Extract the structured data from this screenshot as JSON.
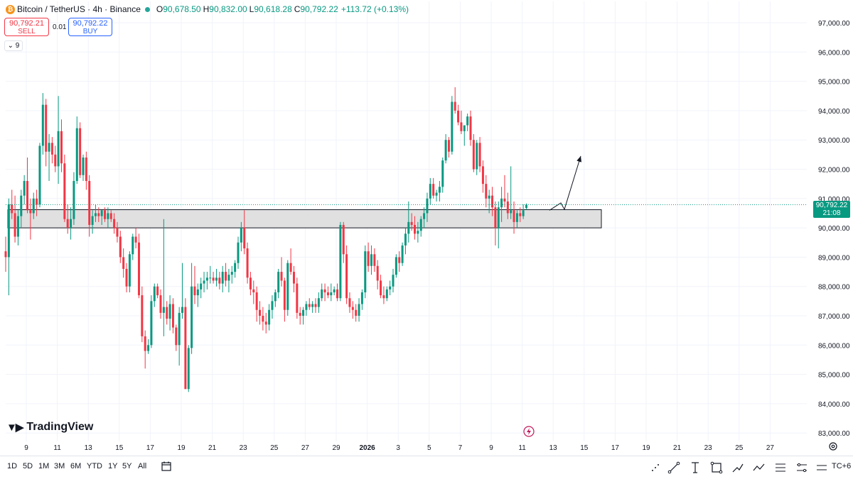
{
  "symbol": {
    "name": "Bitcoin / TetherUS · 4h · Binance",
    "coin_glyph": "₿",
    "ohlc": {
      "o_label": "O",
      "o": "90,678.50",
      "h_label": "H",
      "h": "90,832.00",
      "l_label": "L",
      "l": "90,618.28",
      "c_label": "C",
      "c": "90,792.22",
      "change": "+113.72 (+0.13%)"
    }
  },
  "trade": {
    "sell_price": "90,792.21",
    "sell_label": "SELL",
    "spread": "0.01",
    "buy_price": "90,792.22",
    "buy_label": "BUY"
  },
  "indicators_toggle": "⌄ 9",
  "brand": {
    "mark": "▼▶",
    "name": "TradingView"
  },
  "last_price": {
    "price": "90,792.22",
    "countdown": "21:08"
  },
  "time_ranges": [
    "1D",
    "5D",
    "1M",
    "3M",
    "6M",
    "YTD",
    "1Y",
    "5Y",
    "All"
  ],
  "timezone": "TC+6",
  "drawing_tools": [
    "cursor-tool-icon",
    "trendline-tool-icon",
    "text-tool-icon",
    "rectangle-tool-icon",
    "brush-tool-icon",
    "path-tool-icon",
    "fib-tool-icon",
    "position-tool-icon",
    "measure-tool-icon"
  ],
  "colors": {
    "up": "#089981",
    "down": "#f23645",
    "zone_fill": "#e0e0e0",
    "accent": "#2962ff"
  },
  "chart_data": {
    "type": "candlestick",
    "title": "Bitcoin / TetherUS · 4h · Binance",
    "y_ticks": [
      97000,
      96000,
      95000,
      94000,
      93000,
      92000,
      91000,
      90000,
      89000,
      88000,
      87000,
      86000,
      85000,
      84000,
      83000
    ],
    "ylim": [
      82900,
      97600
    ],
    "x_tick_labels": [
      "9",
      "11",
      "13",
      "15",
      "17",
      "19",
      "21",
      "23",
      "25",
      "27",
      "29",
      "2026",
      "3",
      "5",
      "7",
      "9",
      "11",
      "13",
      "15",
      "17",
      "19",
      "21",
      "23",
      "25",
      "27"
    ],
    "last_price": 90792.22,
    "support_zone": {
      "low": 90000,
      "high": 90620
    },
    "projection": [
      90600,
      90850,
      90630,
      92450
    ],
    "candles": [
      [
        89200,
        89700,
        88500,
        89000
      ],
      [
        89000,
        91000,
        87700,
        90800
      ],
      [
        90800,
        91300,
        90300,
        90500
      ],
      [
        90500,
        91100,
        89500,
        89700
      ],
      [
        89700,
        90600,
        89400,
        90400
      ],
      [
        90400,
        91300,
        90000,
        91100
      ],
      [
        91100,
        91800,
        90800,
        91600
      ],
      [
        91600,
        92400,
        90500,
        90600
      ],
      [
        90600,
        91000,
        89600,
        90500
      ],
      [
        90500,
        91200,
        90300,
        91000
      ],
      [
        91000,
        91300,
        90400,
        90800
      ],
      [
        90800,
        92900,
        90700,
        92800
      ],
      [
        92800,
        94600,
        92500,
        94200
      ],
      [
        94200,
        94400,
        92100,
        92600
      ],
      [
        92600,
        93200,
        91600,
        92900
      ],
      [
        92900,
        93100,
        92200,
        92500
      ],
      [
        92500,
        92800,
        91900,
        92100
      ],
      [
        92100,
        94500,
        91500,
        93300
      ],
      [
        93300,
        93700,
        91900,
        92200
      ],
      [
        92200,
        92500,
        90200,
        90300
      ],
      [
        90300,
        90800,
        89800,
        90000
      ],
      [
        90000,
        90700,
        89600,
        90300
      ],
      [
        90300,
        91900,
        90100,
        91600
      ],
      [
        91600,
        93800,
        91500,
        93400
      ],
      [
        93400,
        93600,
        91700,
        91800
      ],
      [
        91800,
        92500,
        91600,
        92400
      ],
      [
        92400,
        92600,
        91300,
        91600
      ],
      [
        91600,
        91800,
        89700,
        90100
      ],
      [
        90100,
        90600,
        89800,
        90400
      ],
      [
        90400,
        90800,
        90200,
        90500
      ],
      [
        90500,
        90700,
        90200,
        90400
      ],
      [
        90400,
        90600,
        90100,
        90600
      ],
      [
        90600,
        90700,
        90200,
        90300
      ],
      [
        90300,
        90700,
        90000,
        90500
      ],
      [
        90500,
        90600,
        90200,
        90300
      ],
      [
        90300,
        90500,
        89800,
        90000
      ],
      [
        90000,
        90200,
        89500,
        89700
      ],
      [
        89700,
        89900,
        88800,
        89000
      ],
      [
        89000,
        89300,
        88300,
        88600
      ],
      [
        88600,
        88800,
        87800,
        88000
      ],
      [
        88000,
        89200,
        87800,
        89100
      ],
      [
        89100,
        89800,
        88900,
        89700
      ],
      [
        89700,
        90000,
        89300,
        89500
      ],
      [
        89500,
        89800,
        87600,
        87700
      ],
      [
        87700,
        88000,
        86100,
        86300
      ],
      [
        86300,
        86500,
        85200,
        85800
      ],
      [
        85800,
        86200,
        85700,
        86000
      ],
      [
        86000,
        87700,
        85900,
        87500
      ],
      [
        87500,
        88100,
        87300,
        88000
      ],
      [
        88000,
        88100,
        87600,
        87700
      ],
      [
        87700,
        87900,
        86900,
        87100
      ],
      [
        87100,
        90300,
        86300,
        87300
      ],
      [
        87300,
        87500,
        86700,
        86900
      ],
      [
        86900,
        87700,
        86500,
        87400
      ],
      [
        87400,
        87600,
        86400,
        86600
      ],
      [
        86600,
        86700,
        85800,
        86000
      ],
      [
        86000,
        87300,
        85300,
        87100
      ],
      [
        87100,
        88800,
        86900,
        87300
      ],
      [
        87300,
        87600,
        84500,
        84500
      ],
      [
        84500,
        86000,
        84400,
        85900
      ],
      [
        85900,
        88800,
        85700,
        88000
      ],
      [
        88000,
        88700,
        87400,
        87700
      ],
      [
        87700,
        88100,
        87300,
        87900
      ],
      [
        87900,
        88300,
        87600,
        88100
      ],
      [
        88100,
        88500,
        87800,
        88200
      ],
      [
        88200,
        88500,
        87900,
        88300
      ],
      [
        88300,
        88700,
        88100,
        88300
      ],
      [
        88300,
        88500,
        88100,
        88200
      ],
      [
        88200,
        88600,
        88000,
        88300
      ],
      [
        88300,
        88500,
        87900,
        88100
      ],
      [
        88100,
        88700,
        87800,
        88500
      ],
      [
        88500,
        88800,
        88000,
        88200
      ],
      [
        88200,
        88600,
        87800,
        88400
      ],
      [
        88400,
        88700,
        88100,
        88500
      ],
      [
        88500,
        88900,
        88300,
        88800
      ],
      [
        88800,
        89700,
        88600,
        89500
      ],
      [
        89500,
        90200,
        89200,
        90000
      ],
      [
        90000,
        90600,
        89100,
        89300
      ],
      [
        89300,
        89500,
        88100,
        88300
      ],
      [
        88300,
        88500,
        87700,
        87900
      ],
      [
        87900,
        88200,
        87400,
        87800
      ],
      [
        87800,
        88000,
        86800,
        87200
      ],
      [
        87200,
        87500,
        86700,
        87000
      ],
      [
        87000,
        87300,
        86500,
        86800
      ],
      [
        86800,
        87100,
        86400,
        86700
      ],
      [
        86700,
        87400,
        86500,
        87200
      ],
      [
        87200,
        87700,
        86900,
        87500
      ],
      [
        87500,
        87900,
        87300,
        87800
      ],
      [
        87800,
        88600,
        87600,
        88500
      ],
      [
        88500,
        89000,
        88000,
        88200
      ],
      [
        88200,
        88300,
        86800,
        87200
      ],
      [
        87200,
        88900,
        87000,
        88800
      ],
      [
        88800,
        89300,
        88400,
        88500
      ],
      [
        88500,
        88700,
        87800,
        88100
      ],
      [
        88100,
        88300,
        86900,
        87100
      ],
      [
        87100,
        87300,
        86700,
        87000
      ],
      [
        87000,
        87300,
        86700,
        87200
      ],
      [
        87200,
        87500,
        87000,
        87400
      ],
      [
        87400,
        87600,
        87200,
        87300
      ],
      [
        87300,
        87500,
        87100,
        87400
      ],
      [
        87400,
        87600,
        87100,
        87300
      ],
      [
        87300,
        87800,
        87100,
        87600
      ],
      [
        87600,
        88100,
        87500,
        87900
      ],
      [
        87900,
        88100,
        87500,
        87800
      ],
      [
        87800,
        88000,
        87600,
        87700
      ],
      [
        87700,
        88100,
        87500,
        87800
      ],
      [
        87800,
        88000,
        87700,
        87900
      ],
      [
        87900,
        88100,
        87500,
        87600
      ],
      [
        87600,
        90200,
        87500,
        90100
      ],
      [
        90100,
        90200,
        88800,
        89100
      ],
      [
        89100,
        89400,
        87400,
        87600
      ],
      [
        87600,
        87800,
        87100,
        87300
      ],
      [
        87300,
        87500,
        86900,
        87200
      ],
      [
        87200,
        87400,
        86800,
        87000
      ],
      [
        87000,
        87600,
        86800,
        87400
      ],
      [
        87400,
        87900,
        87200,
        87800
      ],
      [
        87800,
        89400,
        87600,
        89200
      ],
      [
        89200,
        89500,
        88500,
        88700
      ],
      [
        88700,
        89400,
        88400,
        89100
      ],
      [
        89100,
        89300,
        88500,
        88700
      ],
      [
        88700,
        88900,
        87900,
        88200
      ],
      [
        88200,
        88400,
        87600,
        87700
      ],
      [
        87700,
        88000,
        87400,
        87600
      ],
      [
        87600,
        88000,
        87500,
        87900
      ],
      [
        87900,
        88200,
        87700,
        88000
      ],
      [
        88000,
        88600,
        87800,
        88400
      ],
      [
        88400,
        89100,
        88300,
        89000
      ],
      [
        89000,
        89200,
        88500,
        88800
      ],
      [
        88800,
        89500,
        88700,
        89400
      ],
      [
        89400,
        90000,
        89100,
        89800
      ],
      [
        89800,
        90900,
        89500,
        90200
      ],
      [
        90200,
        90500,
        89900,
        90100
      ],
      [
        90100,
        90400,
        89600,
        89800
      ],
      [
        89800,
        90200,
        89500,
        89900
      ],
      [
        89900,
        90400,
        89700,
        90300
      ],
      [
        90300,
        90700,
        90000,
        90500
      ],
      [
        90500,
        91200,
        90200,
        91000
      ],
      [
        91000,
        91700,
        90800,
        91500
      ],
      [
        91500,
        91700,
        91000,
        91100
      ],
      [
        91100,
        91300,
        90900,
        91200
      ],
      [
        91200,
        91600,
        90900,
        91400
      ],
      [
        91400,
        92400,
        91200,
        92300
      ],
      [
        92300,
        93200,
        92200,
        93000
      ],
      [
        93000,
        93100,
        92400,
        92600
      ],
      [
        92600,
        94500,
        92500,
        94300
      ],
      [
        94300,
        94800,
        93900,
        94000
      ],
      [
        94000,
        94200,
        93500,
        93600
      ],
      [
        93600,
        94000,
        93200,
        93300
      ],
      [
        93300,
        93500,
        92800,
        93500
      ],
      [
        93500,
        93900,
        93300,
        93800
      ],
      [
        93800,
        94000,
        92800,
        93000
      ],
      [
        93000,
        93200,
        91900,
        92000
      ],
      [
        92000,
        93000,
        91800,
        92900
      ],
      [
        92900,
        93100,
        91900,
        92100
      ],
      [
        92100,
        92300,
        91200,
        91500
      ],
      [
        91500,
        91800,
        90700,
        91000
      ],
      [
        91000,
        91300,
        90500,
        91100
      ],
      [
        91100,
        91400,
        90400,
        90700
      ],
      [
        90700,
        90900,
        89400,
        90000
      ],
      [
        90000,
        90900,
        89300,
        90700
      ],
      [
        90700,
        91400,
        90200,
        91000
      ],
      [
        91000,
        91800,
        90700,
        90900
      ],
      [
        90900,
        91200,
        90300,
        90500
      ],
      [
        90500,
        92100,
        90300,
        90600
      ],
      [
        90600,
        90900,
        89800,
        90200
      ],
      [
        90200,
        90600,
        90000,
        90500
      ],
      [
        90500,
        90700,
        90200,
        90400
      ],
      [
        90400,
        90800,
        90300,
        90600
      ],
      [
        90678.5,
        90832,
        90618.28,
        90792.22
      ]
    ]
  }
}
